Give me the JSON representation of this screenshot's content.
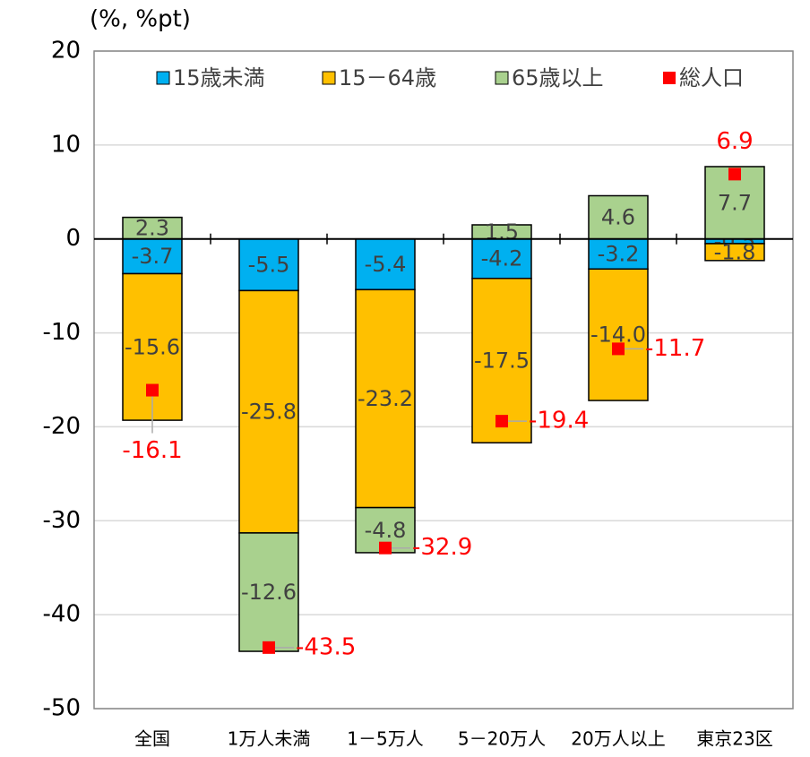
{
  "chart_data": {
    "type": "stacked-bar",
    "y_axis_label": "(%, %pt)",
    "categories": [
      "全国",
      "1万人未満",
      "1－5万人",
      "5－20万人",
      "20万人以上",
      "東京23区"
    ],
    "series": [
      {
        "name": "15歳未満",
        "color": "#00b0f0",
        "values": [
          -3.7,
          -5.5,
          -5.4,
          -4.2,
          -3.2,
          -0.5
        ]
      },
      {
        "name": "15－64歳",
        "color": "#ffc000",
        "values": [
          -15.6,
          -25.8,
          -23.2,
          -17.5,
          -14.0,
          -1.8
        ],
        "value_labels": [
          "-15.6",
          "-25.8",
          "-23.2",
          "-17.5",
          "-14.0",
          "-1.8"
        ]
      },
      {
        "name": "65歳以上",
        "color": "#a9d18e",
        "values": [
          2.3,
          -12.6,
          -4.8,
          1.5,
          4.6,
          7.7
        ]
      }
    ],
    "total": {
      "name": "総人口",
      "color": "#ff0000",
      "values": [
        -16.1,
        -43.5,
        -32.9,
        -19.4,
        -11.7,
        6.9
      ]
    },
    "ylim": [
      -50,
      20
    ],
    "yticks": [
      -50,
      -40,
      -30,
      -20,
      -10,
      0,
      10,
      20
    ],
    "grid": true,
    "legend": "top"
  }
}
